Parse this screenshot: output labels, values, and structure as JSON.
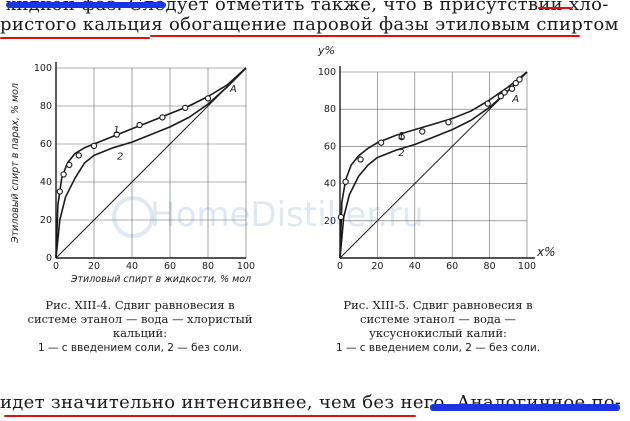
{
  "text": {
    "top_line_1": "хидкой фаз. Следует отметить также, что в присутствии хло-",
    "top_line_2": "ристого кальция обогащение паровой фазы этиловым спиртом",
    "bottom_line": "идет значительно интенсивнее, чем без него. Аналогичное по-"
  },
  "watermark": "HomeDistiller.ru",
  "colors": {
    "underline": "#e01010",
    "scribble": "#1736e6",
    "ink": "#1a1a1a"
  },
  "chart_data": [
    {
      "type": "line",
      "ylabel": "Этиловый спирт в парах, % мол",
      "xlabel": "Этиловый спирт в жидкости, % мол",
      "xticks": [
        "0",
        "20",
        "40",
        "60",
        "80",
        "100"
      ],
      "yticks": [
        "0",
        "20",
        "40",
        "60",
        "80",
        "100"
      ],
      "xlim": [
        0,
        100
      ],
      "ylim": [
        0,
        100
      ],
      "grid": true,
      "series": [
        {
          "name": "1",
          "x": [
            0,
            1,
            3,
            6,
            10,
            15,
            20,
            30,
            40,
            50,
            60,
            70,
            80,
            90,
            100
          ],
          "y": [
            0,
            28,
            42,
            50,
            55,
            58,
            60,
            64,
            68,
            72,
            76,
            80,
            85,
            91,
            100
          ]
        },
        {
          "name": "2",
          "x": [
            0,
            2,
            5,
            10,
            15,
            20,
            30,
            40,
            50,
            60,
            70,
            80,
            89.4,
            100
          ],
          "y": [
            0,
            20,
            32,
            42,
            50,
            54,
            58,
            61,
            65,
            69,
            74,
            81,
            89.4,
            100
          ]
        },
        {
          "name": "diagonal",
          "x": [
            0,
            100
          ],
          "y": [
            0,
            100
          ]
        }
      ],
      "markers": [
        {
          "series": "1",
          "x": [
            2,
            4,
            7,
            12,
            20,
            32,
            44,
            56,
            68,
            80
          ],
          "y": [
            35,
            44,
            49,
            54,
            59,
            65,
            70,
            74,
            79,
            84
          ]
        }
      ],
      "annotations": [
        {
          "text": "A",
          "x": 89.4,
          "y": 89.4
        },
        {
          "text": "1",
          "x": 28,
          "y": 68
        },
        {
          "text": "2",
          "x": 30,
          "y": 54
        }
      ],
      "caption": {
        "title": "Рис. XIII-4. Сдвиг равновесия в системе этанол — вода — хлористый кальций:",
        "note": "1 — с введением соли, 2 — без соли."
      }
    },
    {
      "type": "line",
      "ylabel": "y%",
      "xlabel": "x%",
      "xticks": [
        "0",
        "20",
        "40",
        "60",
        "80",
        "100"
      ],
      "yticks": [
        "20",
        "40",
        "60",
        "80",
        "100"
      ],
      "xlim": [
        0,
        100
      ],
      "ylim": [
        0,
        100
      ],
      "grid": true,
      "series": [
        {
          "name": "1",
          "x": [
            0,
            1,
            3,
            6,
            10,
            15,
            20,
            30,
            40,
            50,
            60,
            70,
            80,
            90,
            95,
            100
          ],
          "y": [
            0,
            30,
            42,
            50,
            55,
            59,
            62,
            66,
            69,
            72,
            75,
            79,
            85,
            92,
            96,
            100
          ]
        },
        {
          "name": "2",
          "x": [
            0,
            2,
            5,
            10,
            15,
            20,
            30,
            40,
            50,
            60,
            70,
            80,
            89.4,
            100
          ],
          "y": [
            0,
            22,
            34,
            44,
            50,
            54,
            58,
            61,
            65,
            69,
            74,
            81,
            89.4,
            100
          ]
        },
        {
          "name": "diagonal",
          "x": [
            0,
            100
          ],
          "y": [
            0,
            100
          ]
        }
      ],
      "markers": [
        {
          "series": "1",
          "x": [
            0.5,
            3,
            11,
            22,
            33,
            44,
            58,
            79,
            86,
            88,
            92,
            94,
            96
          ],
          "y": [
            22,
            41,
            53,
            62,
            65,
            68,
            73,
            83,
            87,
            89,
            91,
            94,
            96
          ]
        }
      ],
      "annotations": [
        {
          "text": "A",
          "x": 90,
          "y": 86
        },
        {
          "text": "1",
          "x": 29,
          "y": 66
        },
        {
          "text": "2",
          "x": 29,
          "y": 57
        }
      ],
      "caption": {
        "title": "Рис. XIII-5. Сдвиг равновесия в системе этанол — вода — уксуснокислый калий:",
        "note": "1 — с введением соли, 2 — без соли."
      }
    }
  ]
}
